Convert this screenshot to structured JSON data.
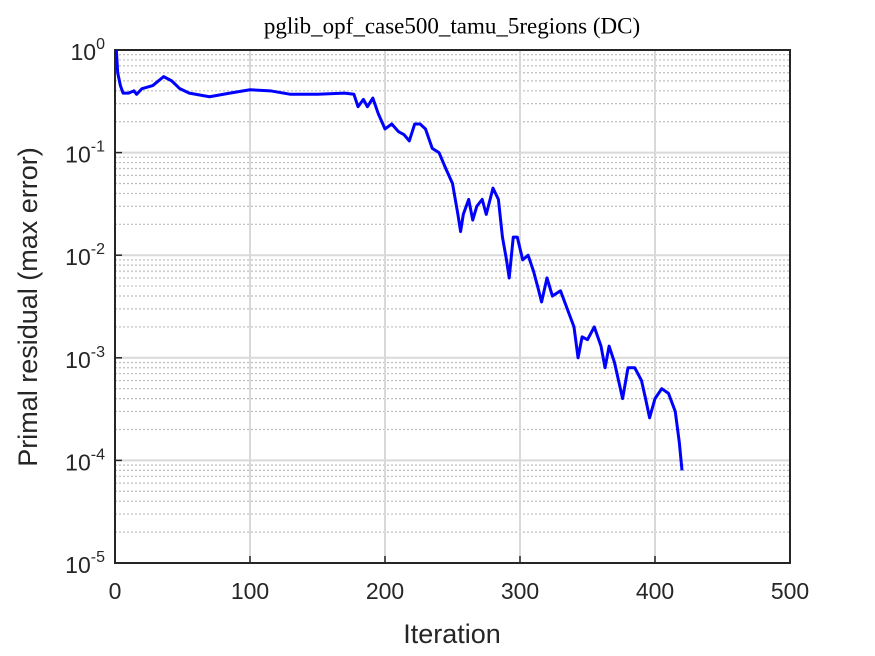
{
  "chart_data": {
    "type": "line",
    "title": "pglib_opf_case500_tamu_5regions (DC)",
    "xlabel": "Iteration",
    "ylabel": "Primal residual (max error)",
    "xlim": [
      0,
      500
    ],
    "xticks": [
      0,
      100,
      200,
      300,
      400,
      500
    ],
    "ylim": [
      1e-05,
      1
    ],
    "yticks": [
      {
        "value": 1e-05,
        "label": "10^-5"
      },
      {
        "value": 0.0001,
        "label": "10^-4"
      },
      {
        "value": 0.001,
        "label": "10^-3"
      },
      {
        "value": 0.01,
        "label": "10^-2"
      },
      {
        "value": 0.1,
        "label": "10^-1"
      },
      {
        "value": 1,
        "label": "10^0"
      }
    ],
    "yscale": "log",
    "grid": true,
    "minor_grid": true,
    "x": [
      1,
      2,
      4,
      6,
      10,
      14,
      16,
      20,
      28,
      36,
      42,
      48,
      55,
      70,
      85,
      100,
      115,
      130,
      150,
      170,
      177,
      180,
      184,
      187,
      191,
      195,
      200,
      205,
      210,
      214,
      218,
      222,
      226,
      230,
      235,
      240,
      245,
      250,
      254,
      256,
      258,
      262,
      265,
      268,
      272,
      275,
      280,
      284,
      287,
      290,
      292,
      295,
      298,
      302,
      306,
      310,
      313,
      316,
      320,
      324,
      330,
      335,
      340,
      343,
      346,
      350,
      355,
      360,
      363,
      366,
      370,
      373,
      376,
      380,
      385,
      390,
      393,
      396,
      400,
      405,
      410,
      415,
      418,
      420
    ],
    "series": [
      {
        "color": "#0000ff",
        "values": [
          1.0,
          0.6,
          0.45,
          0.38,
          0.38,
          0.4,
          0.37,
          0.42,
          0.45,
          0.55,
          0.5,
          0.42,
          0.38,
          0.35,
          0.38,
          0.41,
          0.4,
          0.37,
          0.37,
          0.38,
          0.37,
          0.28,
          0.33,
          0.28,
          0.34,
          0.24,
          0.17,
          0.19,
          0.16,
          0.15,
          0.13,
          0.19,
          0.19,
          0.17,
          0.11,
          0.1,
          0.07,
          0.05,
          0.025,
          0.017,
          0.025,
          0.035,
          0.022,
          0.03,
          0.035,
          0.025,
          0.045,
          0.035,
          0.015,
          0.009,
          0.006,
          0.015,
          0.015,
          0.009,
          0.01,
          0.007,
          0.005,
          0.0035,
          0.006,
          0.004,
          0.0045,
          0.003,
          0.002,
          0.001,
          0.0016,
          0.0015,
          0.002,
          0.0013,
          0.0008,
          0.0013,
          0.0009,
          0.0006,
          0.0004,
          0.0008,
          0.0008,
          0.0006,
          0.0004,
          0.00026,
          0.0004,
          0.0005,
          0.00045,
          0.0003,
          0.00015,
          8e-05
        ]
      }
    ]
  }
}
